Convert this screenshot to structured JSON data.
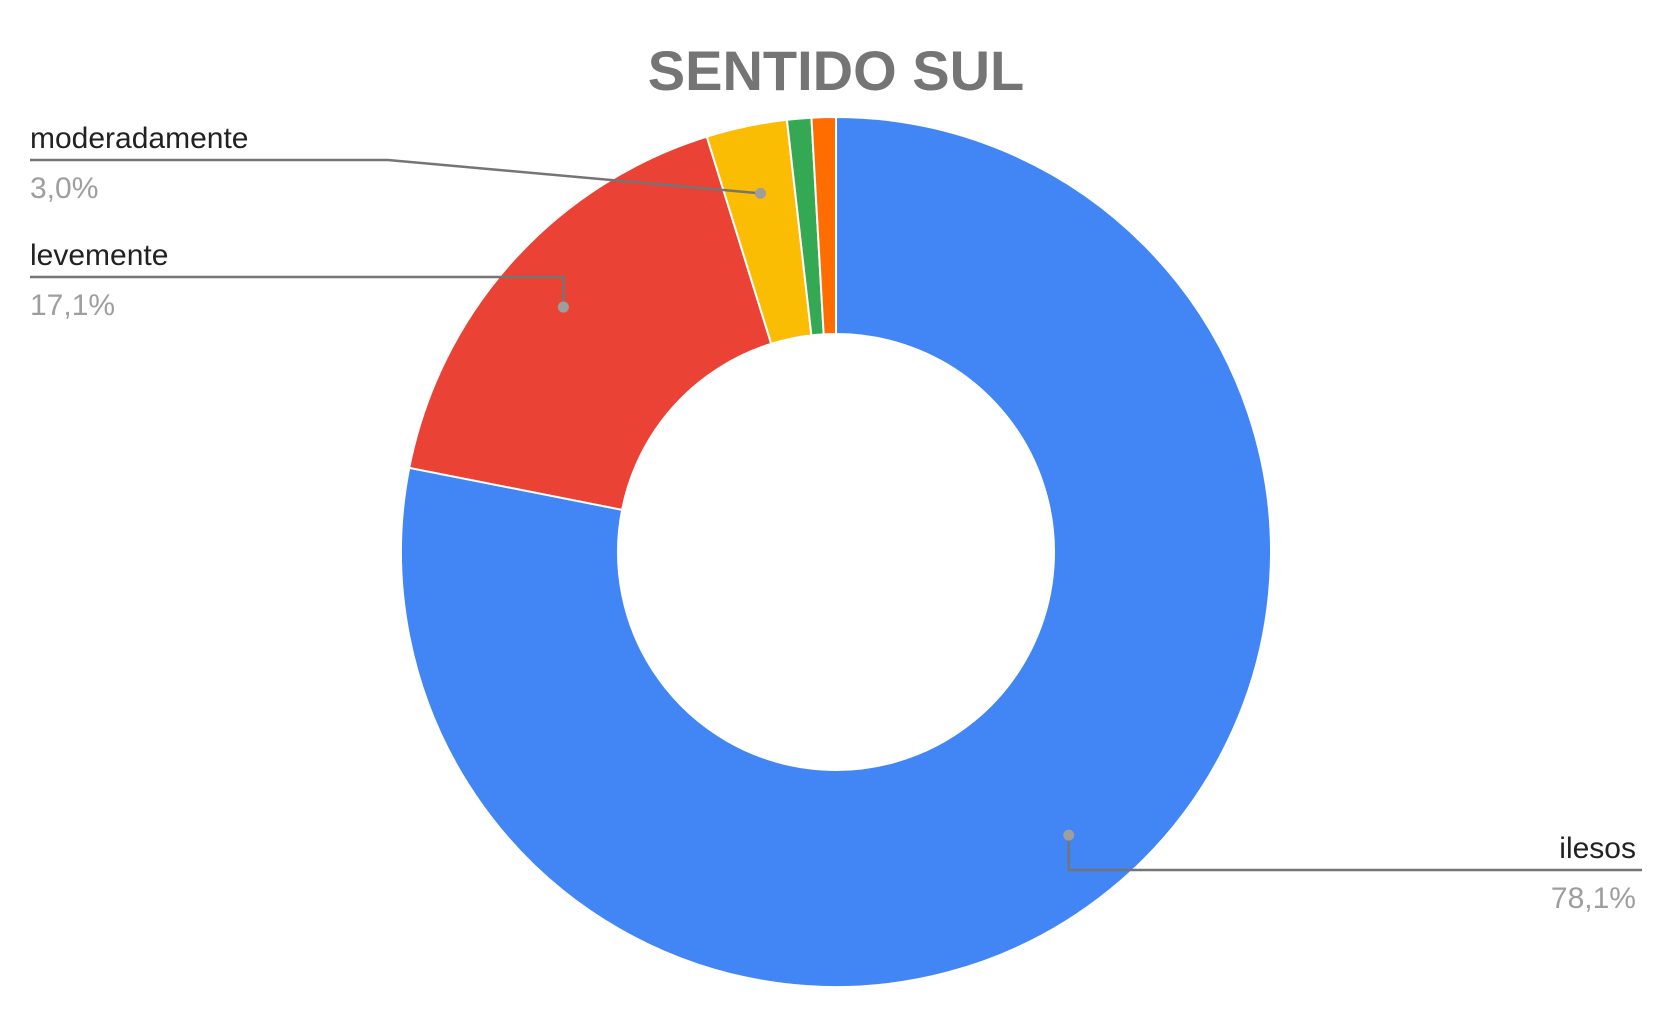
{
  "chart_data": {
    "type": "pie",
    "variant": "donut",
    "title": "SENTIDO SUL",
    "legend": "none",
    "start_angle": "12 o'clock",
    "direction": "clockwise",
    "slices": [
      {
        "name": "ilesos",
        "value": 78.1,
        "label": "78,1%",
        "color": "#4285f4",
        "callout": true
      },
      {
        "name": "levemente",
        "value": 17.1,
        "label": "17,1%",
        "color": "#ea4335",
        "callout": true
      },
      {
        "name": "moderadamente",
        "value": 3.0,
        "label": "3,0%",
        "color": "#fbbc04",
        "callout": true
      },
      {
        "name": "",
        "value": 0.9,
        "label": "",
        "color": "#34a853",
        "callout": false
      },
      {
        "name": "",
        "value": 0.9,
        "label": "",
        "color": "#ff6d01",
        "callout": false
      }
    ]
  }
}
